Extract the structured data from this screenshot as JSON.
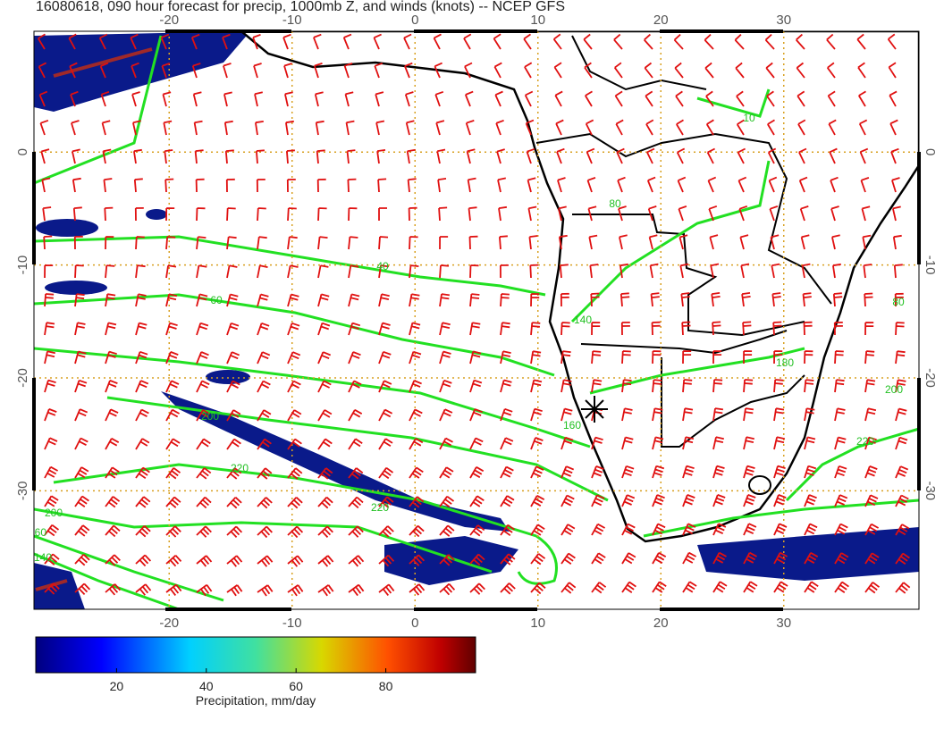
{
  "title": "16080618, 090 hour forecast for precip, 1000mb Z, and winds (knots) -- NCEP GFS",
  "map": {
    "xlim": [
      -31,
      41
    ],
    "ylim": [
      -40.5,
      10.7
    ],
    "xticks": [
      -20,
      -10,
      0,
      10,
      20,
      30
    ],
    "yticks": [
      0,
      -10,
      -20,
      -30
    ],
    "contour_labels": [
      60,
      40,
      80,
      140,
      160,
      180,
      200,
      220,
      220,
      200,
      160,
      140,
      10,
      80,
      200,
      220
    ]
  },
  "colorbar": {
    "label": "Precipitation, mm/day",
    "lim": [
      2,
      100
    ],
    "ticks": [
      20,
      40,
      60,
      80
    ]
  }
}
